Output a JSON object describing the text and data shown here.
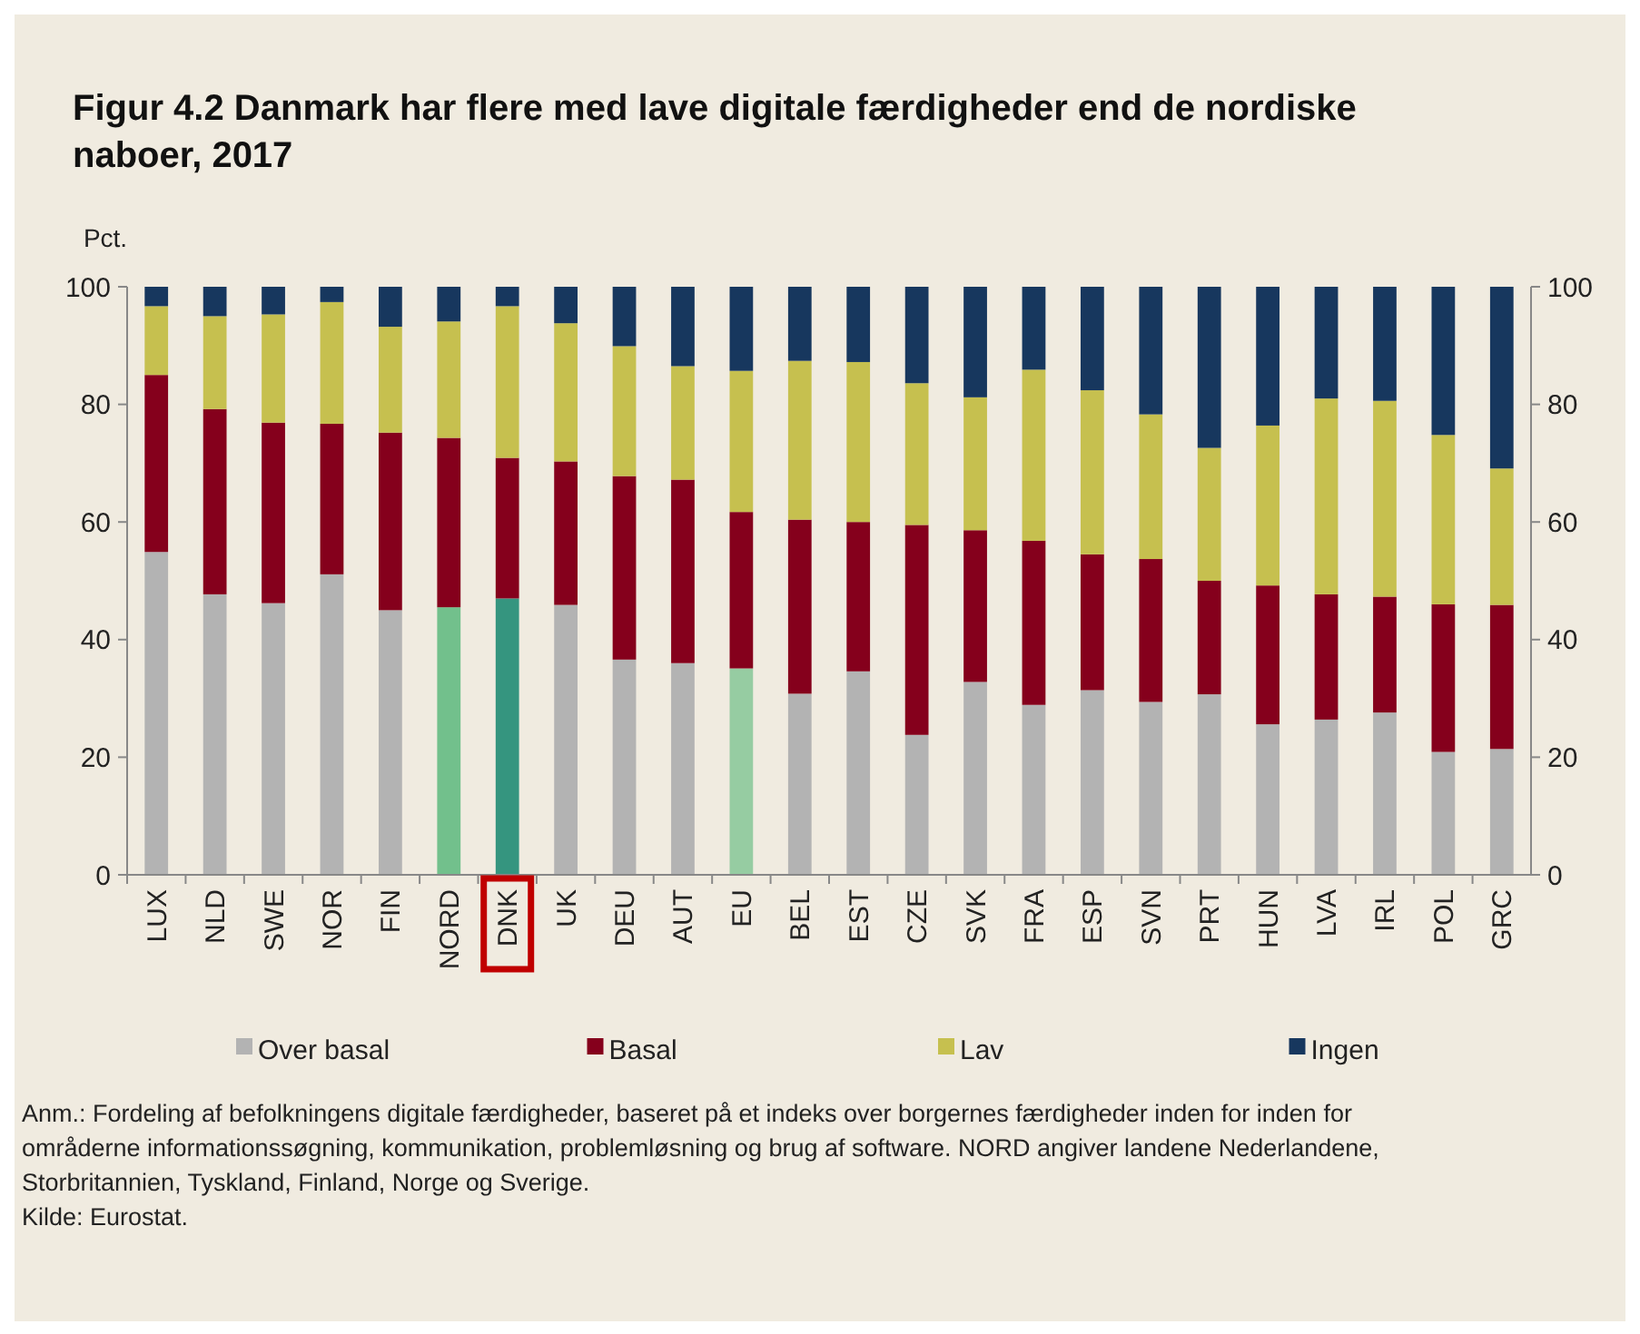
{
  "chart_data": {
    "type": "bar",
    "stacked": true,
    "title": "Figur 4.2 Danmark har flere med lave digitale færdigheder end de nordiske naboer, 2017",
    "ylabel": "Pct.",
    "categories": [
      "LUX",
      "NLD",
      "SWE",
      "NOR",
      "FIN",
      "NORD",
      "DNK",
      "UK",
      "DEU",
      "AUT",
      "EU",
      "BEL",
      "EST",
      "CZE",
      "SVK",
      "FRA",
      "ESP",
      "SVN",
      "PRT",
      "HUN",
      "LVA",
      "IRL",
      "POL",
      "GRC"
    ],
    "series": [
      {
        "name": "Over basal",
        "color": "#b3b3b3",
        "colors": [
          "#b3b3b3",
          "#b3b3b3",
          "#b3b3b3",
          "#b3b3b3",
          "#b3b3b3",
          "#72c08c",
          "#35957f",
          "#b3b3b3",
          "#b3b3b3",
          "#b3b3b3",
          "#96cca2",
          "#b3b3b3",
          "#b3b3b3",
          "#b3b3b3",
          "#b3b3b3",
          "#b3b3b3",
          "#b3b3b3",
          "#b3b3b3",
          "#b3b3b3",
          "#b3b3b3",
          "#b3b3b3",
          "#b3b3b3",
          "#b3b3b3",
          "#b3b3b3"
        ],
        "values": [
          54.9,
          47.7,
          46.2,
          51.1,
          45.0,
          45.5,
          47.0,
          45.9,
          36.6,
          36.0,
          35.1,
          30.8,
          34.6,
          23.8,
          32.8,
          28.9,
          31.4,
          29.4,
          30.7,
          25.6,
          26.4,
          27.6,
          20.9,
          21.4
        ]
      },
      {
        "name": "Basal",
        "color": "#85001c",
        "values": [
          30.1,
          31.5,
          30.7,
          25.6,
          30.2,
          28.8,
          23.9,
          24.4,
          31.2,
          31.2,
          26.6,
          29.6,
          25.4,
          35.7,
          25.8,
          27.9,
          23.1,
          24.3,
          19.3,
          23.6,
          21.3,
          19.7,
          25.1,
          24.5
        ]
      },
      {
        "name": "Lav",
        "color": "#c6c04f",
        "values": [
          11.7,
          15.8,
          18.4,
          20.7,
          18.0,
          19.8,
          25.8,
          23.5,
          22.1,
          19.3,
          24.0,
          27.0,
          27.2,
          24.1,
          22.6,
          29.1,
          27.9,
          24.6,
          22.6,
          27.2,
          33.3,
          33.3,
          28.8,
          23.2
        ]
      },
      {
        "name": "Ingen",
        "color": "#17375e",
        "values": [
          3.3,
          5.0,
          4.7,
          2.6,
          6.8,
          5.9,
          3.3,
          6.2,
          10.1,
          13.5,
          14.3,
          12.6,
          12.8,
          16.4,
          18.8,
          14.1,
          17.6,
          21.7,
          27.4,
          23.6,
          19.0,
          19.4,
          25.2,
          30.9
        ]
      }
    ],
    "ylim": [
      0,
      100
    ],
    "yticks": [
      0,
      20,
      40,
      60,
      80,
      100
    ],
    "y2lim": [
      0,
      100
    ],
    "y2ticks": [
      0,
      20,
      40,
      60,
      80,
      100
    ],
    "grid": false,
    "legend": "bottom",
    "annotations": [
      "Anm.: Fordeling af befolkningens digitale færdigheder, baseret på et indeks over borgernes færdigheder inden for inden for områderne informationssøgning, kommunikation, problemløsning og brug af software. NORD angiver landene Nederlandene, Storbritannien, Tyskland, Finland, Norge og Sverige.",
      "Kilde: Eurostat."
    ]
  }
}
